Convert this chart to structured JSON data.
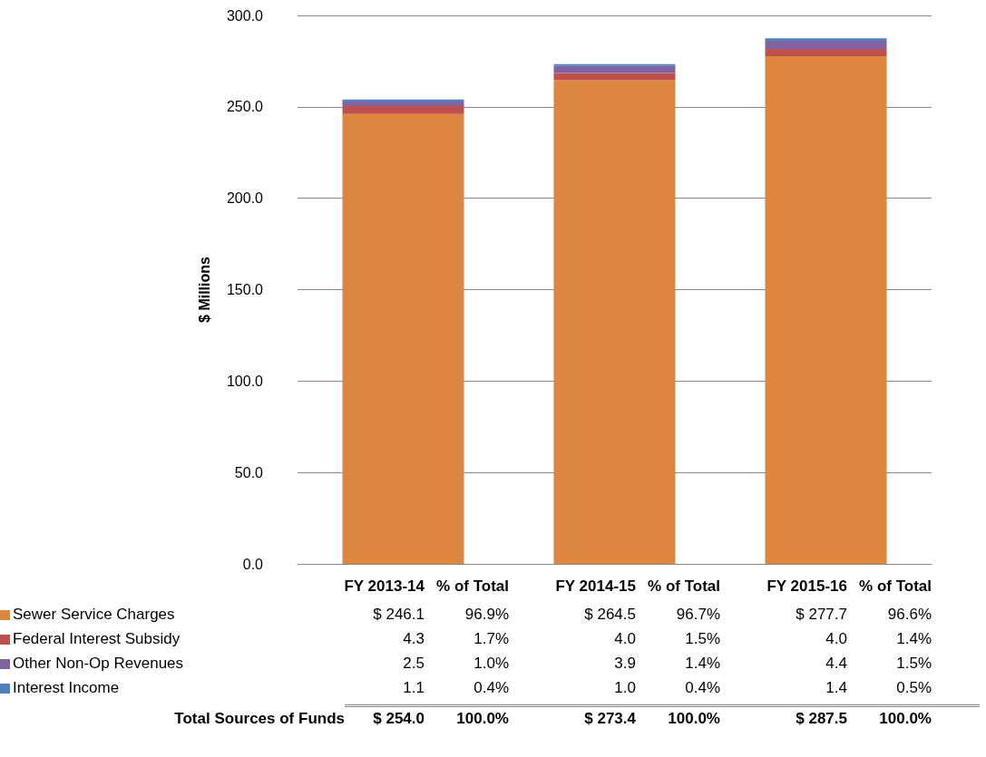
{
  "chart_data": {
    "type": "bar",
    "stacked": true,
    "ylabel": "$ Millions",
    "categories": [
      "FY 2013-14",
      "FY 2014-15",
      "FY 2015-16"
    ],
    "series": [
      {
        "name": "Sewer Service Charges",
        "color": "#dd8640",
        "values": [
          246.1,
          264.5,
          277.7
        ],
        "value_labels": [
          "$ 246.1",
          "$ 264.5",
          "$ 277.7"
        ]
      },
      {
        "name": "Federal Interest Subsidy",
        "color": "#c0504d",
        "values": [
          4.3,
          4.0,
          4.0
        ],
        "value_labels": [
          "4.3",
          "4.0",
          "4.0"
        ]
      },
      {
        "name": "Other Non-Op Revenues",
        "color": "#8064a2",
        "values": [
          2.5,
          3.9,
          4.4
        ],
        "value_labels": [
          "2.5",
          "3.9",
          "4.4"
        ]
      },
      {
        "name": "Interest Income",
        "color": "#4f81bd",
        "values": [
          1.1,
          1.0,
          1.4
        ],
        "value_labels": [
          "1.1",
          "1.0",
          "1.4"
        ]
      }
    ],
    "annotations": [
      "% of Total",
      "96.9%",
      "96.7%",
      "96.6%",
      "1.7%",
      "1.5%",
      "1.4%",
      "1.0%",
      "1.4%",
      "1.5%",
      "0.4%",
      "0.4%",
      "0.5%",
      "Total Sources of Funds",
      "$ 254.0",
      "$ 273.4",
      "$ 287.5",
      "100.0%",
      "100.0%",
      "100.0%"
    ],
    "ylim": [
      0,
      300
    ],
    "yticks": [
      {
        "value": 0,
        "label": "0.0"
      },
      {
        "value": 50,
        "label": "50.0"
      },
      {
        "value": 100,
        "label": "100.0"
      },
      {
        "value": 150,
        "label": "150.0"
      },
      {
        "value": 200,
        "label": "200.0"
      },
      {
        "value": 250,
        "label": "250.0"
      },
      {
        "value": 300,
        "label": "300.0"
      }
    ],
    "grid": "y",
    "legend": "bottom",
    "tick_labels": "y"
  }
}
